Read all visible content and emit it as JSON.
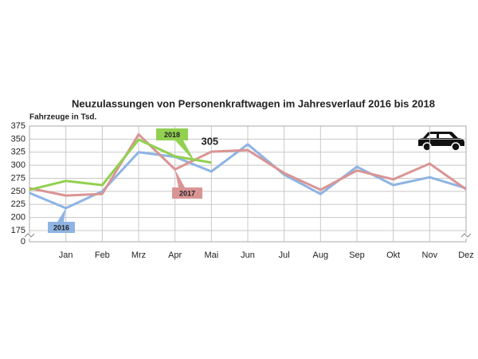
{
  "chart_data": {
    "type": "line",
    "title": "Neuzulassungen von Personenkraftwagen im Jahresverlauf 2016 bis 2018",
    "y_label": "Fahrzeuge in Tsd.",
    "categories": [
      null,
      "Jan",
      "Feb",
      "Mrz",
      "Apr",
      "Mai",
      "Jun",
      "Jul",
      "Aug",
      "Sep",
      "Okt",
      "Nov",
      "Dez"
    ],
    "series": [
      {
        "name": "2016",
        "color": "#8eb4e3",
        "values": [
          247,
          218,
          250,
          325,
          316,
          288,
          340,
          282,
          245,
          297,
          262,
          277,
          256
        ]
      },
      {
        "name": "2017",
        "color": "#d99594",
        "values": [
          256,
          242,
          245,
          359,
          292,
          326,
          329,
          285,
          253,
          290,
          273,
          303,
          254
        ]
      },
      {
        "name": "2018",
        "color": "#92d050",
        "values": [
          253,
          270,
          262,
          349,
          317,
          305,
          null,
          null,
          null,
          null,
          null,
          null,
          null
        ]
      }
    ],
    "annotation": {
      "series": 2,
      "index": 5
    },
    "ylim": [
      0,
      375
    ],
    "axis_break": [
      0,
      175
    ],
    "yticks": [
      0,
      175,
      200,
      225,
      250,
      275,
      300,
      325,
      350,
      375
    ],
    "grid": true
  }
}
